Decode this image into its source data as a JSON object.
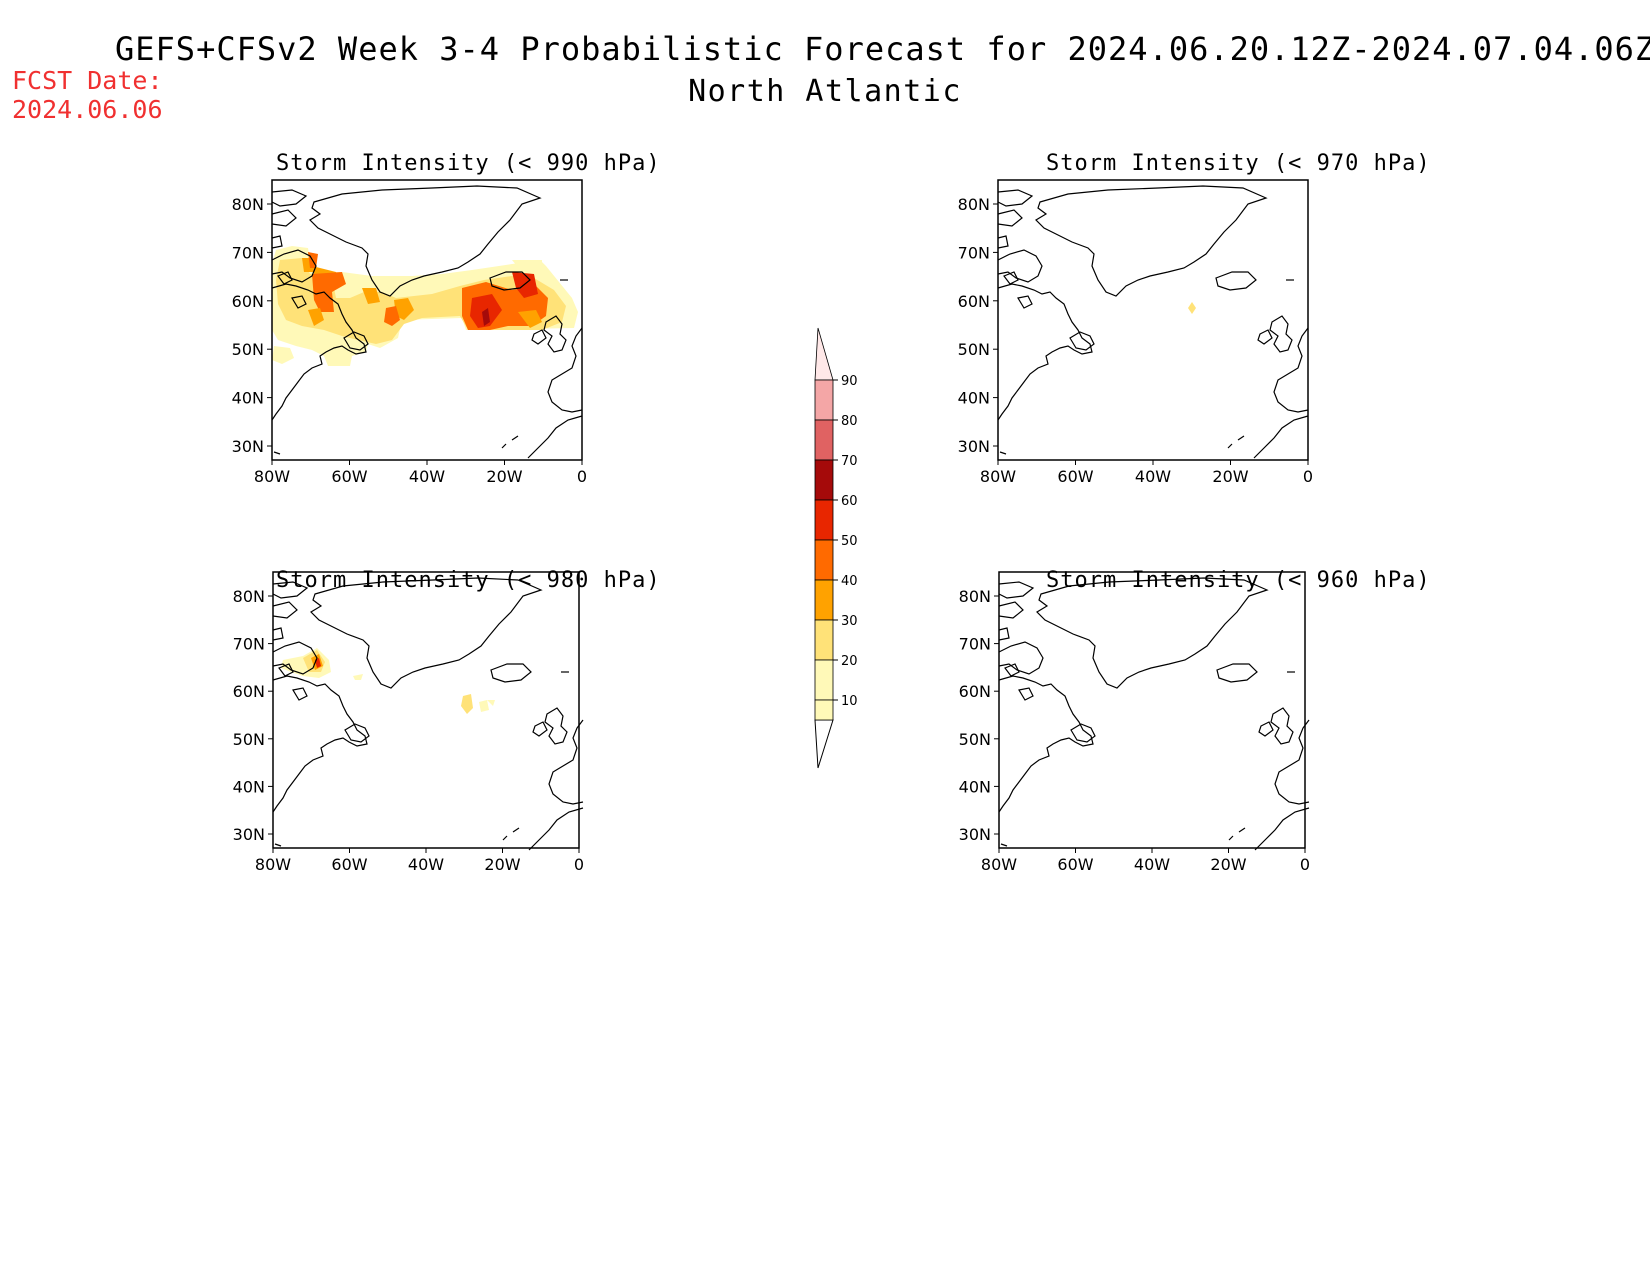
{
  "header": {
    "title": "GEFS+CFSv2 Week 3-4 Probabilistic Forecast for 2024.06.20.12Z-2024.07.04.06Z",
    "region": "North Atlantic",
    "fcst_label": "FCST Date:",
    "fcst_date": "2024.06.06"
  },
  "panels": [
    {
      "title": "Storm Intensity (< 990 hPa)"
    },
    {
      "title": "Storm Intensity (< 970 hPa)"
    },
    {
      "title": "Storm Intensity (< 980 hPa)"
    },
    {
      "title": "Storm Intensity (< 960 hPa)"
    }
  ],
  "axes": {
    "lat_labels": [
      "80N",
      "70N",
      "60N",
      "50N",
      "40N",
      "30N"
    ],
    "lon_labels": [
      "80W",
      "60W",
      "40W",
      "20W",
      "0"
    ]
  },
  "colorbar": {
    "labels": [
      "10",
      "20",
      "30",
      "40",
      "50",
      "60",
      "70",
      "80",
      "90"
    ],
    "colors": [
      "#fff9b8",
      "#ffe278",
      "#ffa200",
      "#ff6a00",
      "#e82600",
      "#a50a0a",
      "#e06262",
      "#f4a6a6",
      "#ffe8e8"
    ]
  },
  "colors": {
    "fcst_text": "#f03030"
  }
}
